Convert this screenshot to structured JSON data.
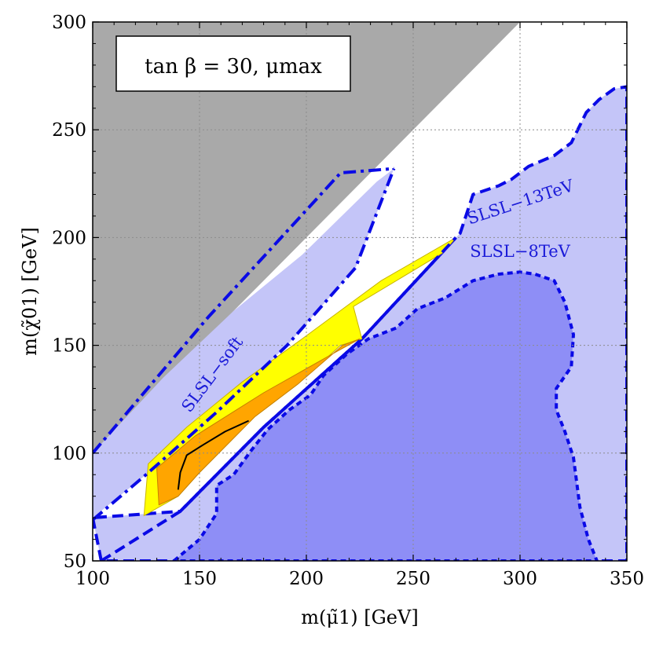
{
  "chart_data": {
    "type": "area",
    "title": "tan β = 30, μmax",
    "xlabel": "m(μ̃1) [GeV]",
    "ylabel": "m(χ̃01) [GeV]",
    "xlim": [
      100,
      350
    ],
    "ylim": [
      50,
      300
    ],
    "xticks": [
      "100",
      "150",
      "200",
      "250",
      "300",
      "350"
    ],
    "yticks": [
      "50",
      "100",
      "150",
      "200",
      "250",
      "300"
    ],
    "grid": true,
    "colors": {
      "excluded": "#a9a9a9",
      "slsl13": "#c4c5f8",
      "slsl8": "#8e8ef6",
      "boundary": "#0a0ae6",
      "yellow": "#ffff00",
      "orange": "#ffa500"
    },
    "regions": [
      {
        "name": "grey-excluded",
        "points": [
          [
            100,
            300
          ],
          [
            300,
            300
          ],
          [
            100,
            100
          ]
        ]
      },
      {
        "name": "SLSL-13TeV",
        "label": "SLSL−13TeV",
        "points": [
          [
            100,
            70
          ],
          [
            104,
            50
          ],
          [
            350,
            50
          ],
          [
            350,
            270
          ],
          [
            344,
            269
          ],
          [
            337,
            264
          ],
          [
            331,
            258
          ],
          [
            324,
            244
          ],
          [
            316,
            238
          ],
          [
            304,
            233
          ],
          [
            296,
            227
          ],
          [
            290,
            224
          ],
          [
            278,
            220
          ],
          [
            272,
            202
          ],
          [
            270,
            200
          ],
          [
            226,
            153
          ],
          [
            180,
            112
          ],
          [
            141,
            73
          ],
          [
            100,
            70
          ]
        ]
      },
      {
        "name": "SLSL-soft-fill",
        "points": [
          [
            100,
            100
          ],
          [
            100,
            70
          ],
          [
            125,
            90
          ],
          [
            158,
            119
          ],
          [
            191,
            150
          ],
          [
            223,
            186
          ],
          [
            241,
            232
          ],
          [
            233,
            226
          ],
          [
            198,
            192
          ],
          [
            166,
            166
          ],
          [
            133,
            135
          ],
          [
            100,
            100
          ]
        ]
      },
      {
        "name": "SLSL-8TeV",
        "label": "SLSL−8TeV",
        "points": [
          [
            138,
            50
          ],
          [
            150,
            60
          ],
          [
            158,
            72
          ],
          [
            158,
            85
          ],
          [
            166,
            90
          ],
          [
            174,
            101
          ],
          [
            182,
            111
          ],
          [
            192,
            120
          ],
          [
            202,
            127
          ],
          [
            208,
            136
          ],
          [
            219,
            146
          ],
          [
            229,
            153
          ],
          [
            242,
            158
          ],
          [
            252,
            167
          ],
          [
            265,
            172
          ],
          [
            278,
            180
          ],
          [
            290,
            183
          ],
          [
            300,
            184
          ],
          [
            307,
            183
          ],
          [
            316,
            180
          ],
          [
            321,
            170
          ],
          [
            325,
            155
          ],
          [
            324,
            140
          ],
          [
            317,
            130
          ],
          [
            317,
            120
          ],
          [
            321,
            110
          ],
          [
            325,
            98
          ],
          [
            328,
            75
          ],
          [
            332,
            60
          ],
          [
            336,
            50
          ]
        ]
      },
      {
        "name": "yellow-band",
        "points": [
          [
            124,
            71
          ],
          [
            126,
            95
          ],
          [
            144,
            112
          ],
          [
            170,
            133
          ],
          [
            198,
            153
          ],
          [
            235,
            180
          ],
          [
            270,
            200
          ],
          [
            264,
            193
          ],
          [
            222,
            168
          ],
          [
            226,
            153
          ],
          [
            216,
            150
          ],
          [
            196,
            132
          ],
          [
            176,
            117
          ],
          [
            150,
            91
          ],
          [
            140,
            80
          ]
        ]
      },
      {
        "name": "orange-band",
        "points": [
          [
            131,
            76
          ],
          [
            130,
            93
          ],
          [
            148,
            108
          ],
          [
            180,
            128
          ],
          [
            214,
            147
          ],
          [
            225,
            153
          ],
          [
            217,
            150
          ],
          [
            196,
            132
          ],
          [
            176,
            117
          ],
          [
            150,
            91
          ],
          [
            140,
            80
          ]
        ]
      }
    ],
    "curves": [
      {
        "name": "SLSL-soft-outer",
        "style": "dashdot",
        "points": [
          [
            100,
            100
          ],
          [
            154,
            163
          ],
          [
            216,
            230
          ],
          [
            241,
            232
          ]
        ]
      },
      {
        "name": "SLSL-soft-inner",
        "style": "dashdot",
        "points": [
          [
            100,
            69
          ],
          [
            125,
            90
          ],
          [
            158,
            119
          ],
          [
            191,
            150
          ],
          [
            223,
            186
          ],
          [
            241,
            232
          ]
        ]
      },
      {
        "name": "SLSL-soft-lower",
        "style": "dashed",
        "points": [
          [
            104,
            50
          ],
          [
            141,
            73
          ],
          [
            180,
            112
          ],
          [
            226,
            153
          ],
          [
            270,
            200
          ]
        ]
      },
      {
        "name": "black-line",
        "style": "solid",
        "points": [
          [
            140,
            83
          ],
          [
            141,
            91
          ],
          [
            144,
            99
          ],
          [
            152,
            104
          ],
          [
            162,
            110
          ],
          [
            173,
            115
          ]
        ]
      }
    ],
    "region_labels": [
      {
        "text": "SLSL−soft",
        "x": 158,
        "y": 135,
        "rotation": -53
      },
      {
        "text": "SLSL−13TeV",
        "x": 301,
        "y": 214,
        "rotation": -18
      },
      {
        "text": "SLSL−8TeV",
        "x": 300,
        "y": 191,
        "rotation": 0
      }
    ]
  }
}
